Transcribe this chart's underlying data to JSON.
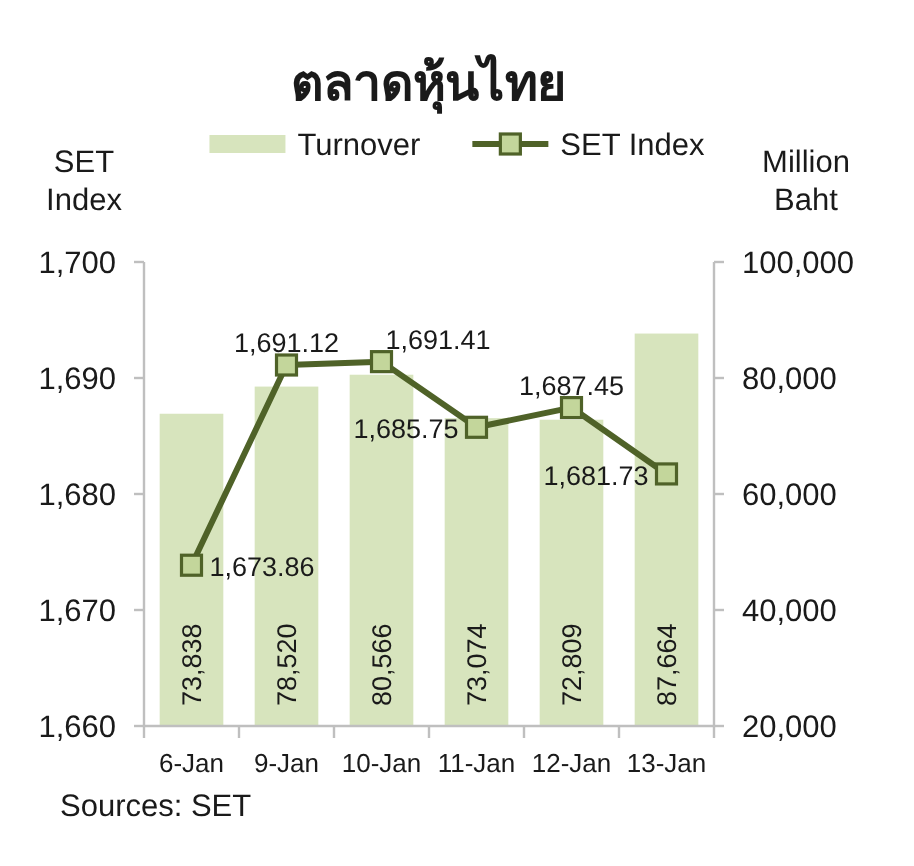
{
  "chart_data": {
    "type": "bar",
    "title": "ตลาดหุ้นไทย",
    "ylabel": "SET Index",
    "y2label": "Million Baht",
    "annotations": [
      "Sources: SET"
    ],
    "categories": [
      "6-Jan",
      "9-Jan",
      "10-Jan",
      "11-Jan",
      "12-Jan",
      "13-Jan"
    ],
    "series": [
      {
        "name": "Turnover",
        "axis": "y2",
        "color": "#d7e4bd",
        "values": [
          73838,
          78520,
          80566,
          73074,
          72809,
          87664
        ],
        "value_labels": [
          "73,838",
          "78,520",
          "80,566",
          "73,074",
          "72,809",
          "87,664"
        ]
      },
      {
        "name": "SET Index",
        "type": "line",
        "color": "#4f6228",
        "marker": "square",
        "line_style": "solid",
        "values": [
          1673.86,
          1691.12,
          1691.41,
          1685.75,
          1687.45,
          1681.73
        ],
        "value_labels": [
          "1,673.86",
          "1,691.12",
          "1,691.41",
          "1,685.75",
          "1,687.45",
          "1,681.73"
        ]
      }
    ],
    "ylim": [
      1660,
      1700
    ],
    "yticks": [
      {
        "value": 1660,
        "label": "1,660"
      },
      {
        "value": 1670,
        "label": "1,670"
      },
      {
        "value": 1680,
        "label": "1,680"
      },
      {
        "value": 1690,
        "label": "1,690"
      },
      {
        "value": 1700,
        "label": "1,700"
      }
    ],
    "y2lim": [
      20000,
      100000
    ],
    "y2ticks": [
      {
        "value": 20000,
        "label": "20,000"
      },
      {
        "value": 40000,
        "label": "40,000"
      },
      {
        "value": 60000,
        "label": "60,000"
      },
      {
        "value": 80000,
        "label": "80,000"
      },
      {
        "value": 100000,
        "label": "100,000"
      }
    ],
    "legend": "top"
  }
}
